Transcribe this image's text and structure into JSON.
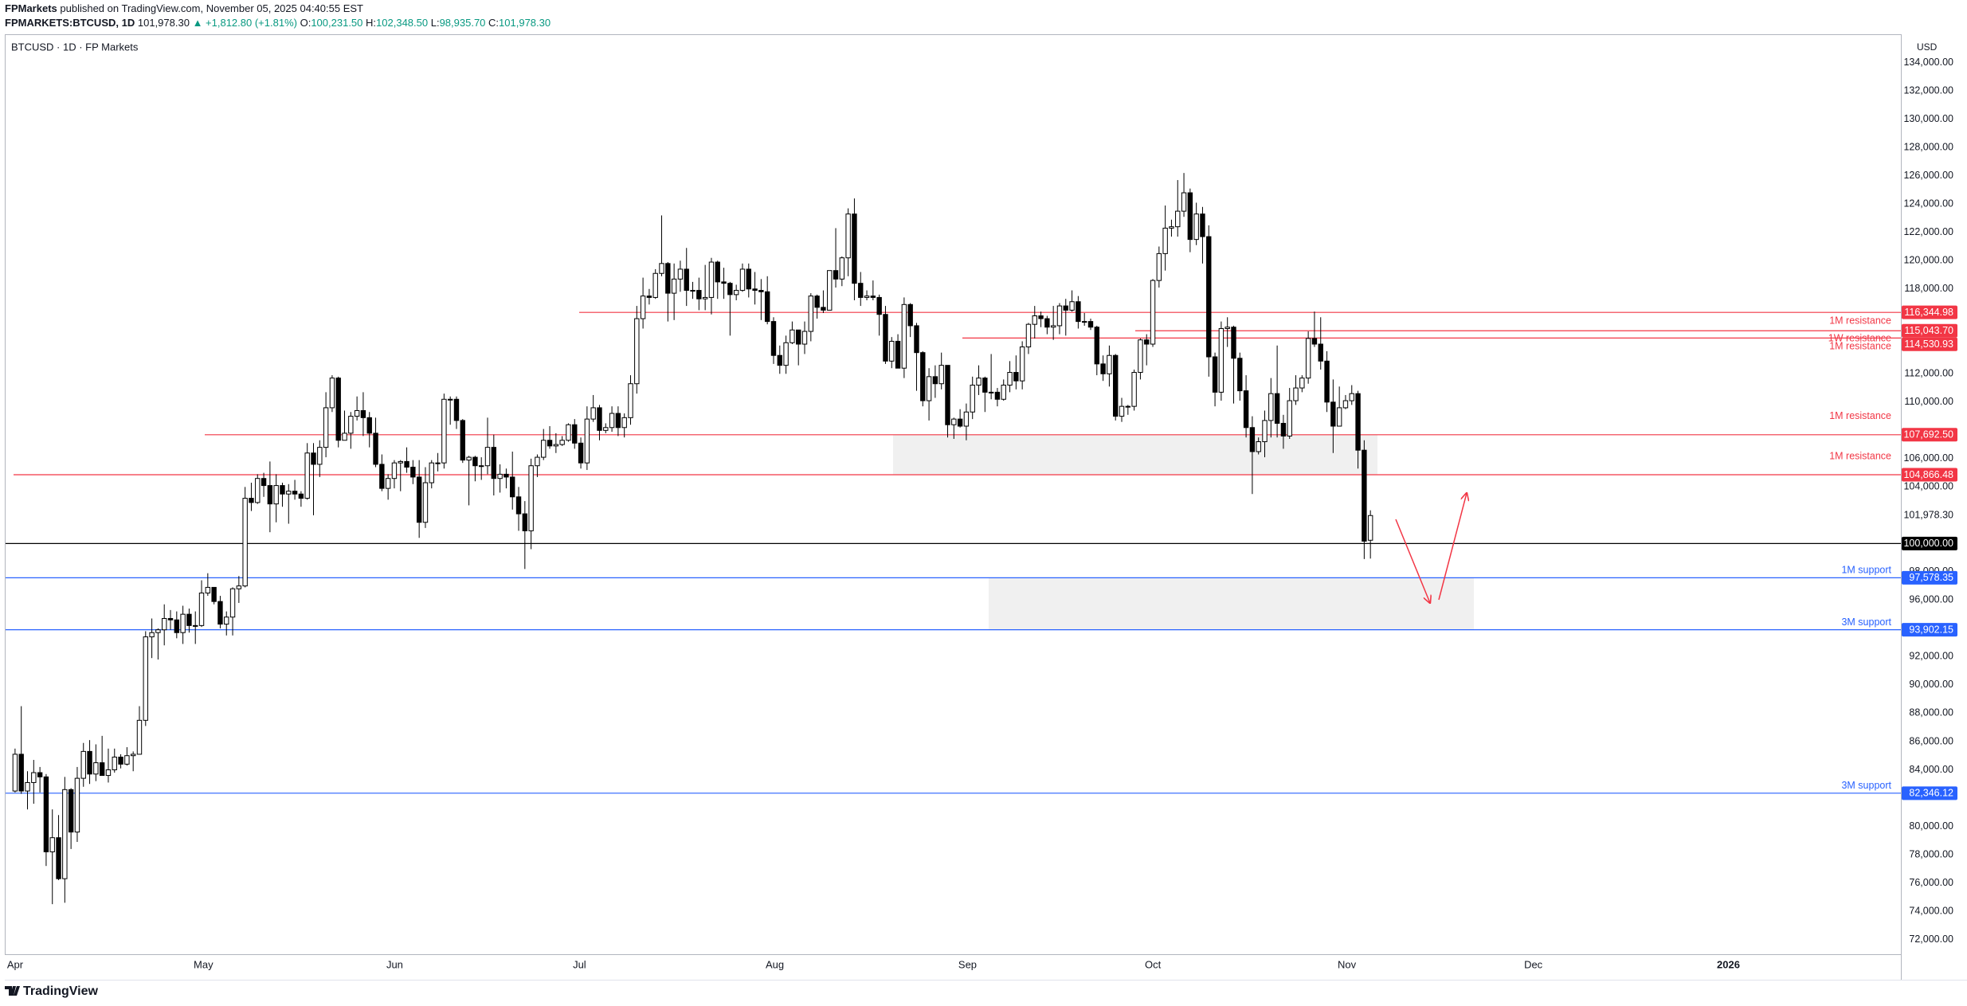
{
  "header": {
    "publisher": "FPMarkets",
    "published": "published on TradingView.com, November 05, 2025 04:40:55 EST",
    "symbol": "FPMARKETS:BTCUSD, 1D",
    "last": "101,978.30",
    "change": "▲ +1,812.80 (+1.81%)",
    "ohlc": [
      {
        "key": "O:",
        "value": "100,231.50"
      },
      {
        "key": "H:",
        "value": "102,348.50"
      },
      {
        "key": "L:",
        "value": "98,935.70"
      },
      {
        "key": "C:",
        "value": "101,978.30"
      }
    ]
  },
  "footer": {
    "brand": "TradingView"
  },
  "chart_data": {
    "type": "candlestick",
    "title": "BTCUSD · 1D · FP Markets",
    "currency": "USD",
    "up_color": "#ffffff",
    "down_color": "#000000",
    "grid": false,
    "xtick_labels": [
      "Apr",
      "May",
      "Jun",
      "Jul",
      "Aug",
      "Sep",
      "Oct",
      "Nov",
      "Dec",
      "2026"
    ],
    "ylim": [
      70960,
      136010
    ],
    "yticks": [
      {
        "value": 72000,
        "label": "72,000.00"
      },
      {
        "value": 74000,
        "label": "74,000.00"
      },
      {
        "value": 76000,
        "label": "76,000.00"
      },
      {
        "value": 78000,
        "label": "78,000.00"
      },
      {
        "value": 80000,
        "label": "80,000.00"
      },
      {
        "value": 84000,
        "label": "84,000.00"
      },
      {
        "value": 86000,
        "label": "86,000.00"
      },
      {
        "value": 88000,
        "label": "88,000.00"
      },
      {
        "value": 90000,
        "label": "90,000.00"
      },
      {
        "value": 92000,
        "label": "92,000.00"
      },
      {
        "value": 96000,
        "label": "96,000.00"
      },
      {
        "value": 98000,
        "label": "98,000.00"
      },
      {
        "value": 104000,
        "label": "104,000.00"
      },
      {
        "value": 106000,
        "label": "106,000.00"
      },
      {
        "value": 110000,
        "label": "110,000.00"
      },
      {
        "value": 112000,
        "label": "112,000.00"
      },
      {
        "value": 118000,
        "label": "118,000.00"
      },
      {
        "value": 120000,
        "label": "120,000.00"
      },
      {
        "value": 122000,
        "label": "122,000.00"
      },
      {
        "value": 124000,
        "label": "124,000.00"
      },
      {
        "value": 126000,
        "label": "126,000.00"
      },
      {
        "value": 128000,
        "label": "128,000.00"
      },
      {
        "value": 130000,
        "label": "130,000.00"
      },
      {
        "value": 132000,
        "label": "132,000.00"
      },
      {
        "value": 134000,
        "label": "134,000.00"
      }
    ],
    "last": {
      "value": 101978.3,
      "label": "101,978.30"
    },
    "levels": [
      {
        "price": 116344.98,
        "price_label": "116,344.98",
        "label": "1M resistance",
        "color": "#f23645"
      },
      {
        "price": 115043.7,
        "price_label": "115,043.70",
        "label": "1W resistance",
        "color": "#f23645"
      },
      {
        "price": 114530.93,
        "price_label": "114,530.93",
        "label": "1M resistance",
        "color": "#f23645"
      },
      {
        "price": 107692.5,
        "price_label": "107,692.50",
        "label": "1M resistance",
        "color": "#f23645"
      },
      {
        "price": 104866.48,
        "price_label": "104,866.48",
        "label": "1M resistance",
        "color": "#f23645"
      },
      {
        "price": 100000,
        "price_label": "100,000.00",
        "color": "#000000"
      },
      {
        "price": 97578.35,
        "price_label": "97,578.35",
        "label": "1M support",
        "color": "#2962ff"
      },
      {
        "price": 93902.15,
        "price_label": "93,902.15",
        "label": "3M support",
        "color": "#2962ff"
      },
      {
        "price": 82346.12,
        "price_label": "82,346.12",
        "label": "3M support",
        "color": "#2962ff"
      }
    ],
    "open": [
      82500,
      85100,
      82500,
      83100,
      83800,
      83500,
      78200,
      79200,
      76300,
      82600,
      79600,
      83400,
      85300,
      83700,
      84500,
      83600,
      84000,
      84900,
      84400,
      85000,
      85100,
      87500,
      93400,
      93700,
      93900,
      94700,
      94600,
      93700,
      95000,
      94200,
      94200,
      96500,
      96900,
      95900,
      94300,
      94800,
      96800,
      97000,
      103200,
      102900,
      104600,
      104100,
      102800,
      104100,
      103500,
      103700,
      103500,
      103200,
      106400,
      105600,
      106800,
      109600,
      111700,
      107300,
      107800,
      109000,
      109400,
      108900,
      107800,
      105600,
      103900,
      104600,
      105700,
      105800,
      105400,
      104700,
      101500,
      104300,
      105700,
      105700,
      110200,
      110200,
      108700,
      105900,
      106100,
      105500,
      105500,
      106800,
      104600,
      104900,
      104700,
      103300,
      102100,
      100900,
      105500,
      106100,
      107300,
      106900,
      107000,
      107300,
      108400,
      107100,
      105700,
      108800,
      109600,
      108000,
      108200,
      109200,
      108200,
      108900,
      111300,
      115900,
      117500,
      117400,
      119100,
      119800,
      117700,
      118700,
      119400,
      117900,
      117900,
      117300,
      117400,
      119900,
      118500,
      118400,
      117600,
      117900,
      119400,
      118000,
      117900,
      117800,
      115700,
      113300,
      112600,
      114200,
      115100,
      114100,
      115000,
      117500,
      116700,
      116500,
      119300,
      118700,
      120200,
      123300,
      118400,
      117400,
      117500,
      117400,
      116200,
      112900,
      114300,
      112400,
      116900,
      115400,
      113500,
      110100,
      111800,
      111300,
      112600,
      108400,
      108800,
      108300,
      109300,
      111200,
      111700,
      110700,
      110700,
      110200,
      111200,
      112100,
      111500,
      113900,
      115500,
      116100,
      115900,
      115300,
      115400,
      116800,
      116500,
      117100,
      115700,
      115700,
      115300,
      112700,
      112000,
      113300,
      109000,
      109700,
      109700,
      112100,
      114400,
      114100,
      118600,
      120500,
      122300,
      122400,
      123500,
      124800,
      121500,
      123300,
      121700,
      113200,
      110700,
      115200,
      115300,
      113100,
      110800,
      108200,
      106500,
      107200,
      108700,
      110600,
      108500,
      107600,
      110100,
      111000,
      111700,
      114500,
      114100,
      112900,
      110000,
      108300,
      109600,
      110100,
      110600,
      106600,
      100231.5
    ],
    "high": [
      85500,
      88500,
      83900,
      84700,
      84200,
      83700,
      81200,
      80800,
      83500,
      82700,
      84200,
      85900,
      86100,
      85800,
      86400,
      85500,
      85500,
      85100,
      85600,
      85300,
      88500,
      93800,
      94700,
      94000,
      95700,
      95300,
      95200,
      95600,
      95400,
      95200,
      97400,
      97900,
      96900,
      96300,
      95200,
      96900,
      97700,
      104000,
      104300,
      104900,
      105000,
      105800,
      104900,
      104300,
      104200,
      104500,
      103700,
      107100,
      107100,
      107300,
      110700,
      111900,
      111800,
      109400,
      109300,
      110400,
      110700,
      109300,
      108900,
      106300,
      104900,
      105900,
      105900,
      106800,
      105900,
      105900,
      105400,
      105900,
      106400,
      110600,
      110400,
      110400,
      108800,
      106200,
      106200,
      106100,
      108900,
      107700,
      105600,
      105300,
      106500,
      104000,
      103000,
      106000,
      106300,
      108100,
      108300,
      107800,
      107600,
      108500,
      108800,
      107500,
      109700,
      110500,
      109800,
      108500,
      109700,
      109700,
      109200,
      111900,
      116800,
      118800,
      118000,
      119400,
      123200,
      119900,
      119800,
      120000,
      120900,
      118500,
      118800,
      119700,
      120200,
      120000,
      119500,
      118500,
      118300,
      119800,
      119800,
      119200,
      118700,
      118900,
      116000,
      114000,
      114700,
      115700,
      115100,
      115700,
      117700,
      117600,
      117900,
      119300,
      122300,
      120300,
      123700,
      124400,
      119200,
      117900,
      118600,
      117600,
      116800,
      114600,
      114800,
      117400,
      117000,
      115600,
      113600,
      112400,
      112600,
      113500,
      112600,
      108900,
      109500,
      109900,
      111800,
      112600,
      111800,
      113400,
      111000,
      111600,
      112900,
      113300,
      114300,
      115600,
      116800,
      116400,
      116100,
      116800,
      117000,
      117300,
      117900,
      117500,
      116300,
      115900,
      115400,
      113300,
      114000,
      113400,
      110300,
      109800,
      112300,
      114500,
      114800,
      118700,
      121000,
      123900,
      122900,
      125700,
      126200,
      125100,
      124100,
      123800,
      122500,
      113500,
      115700,
      116000,
      115400,
      113500,
      111900,
      109000,
      107500,
      109400,
      111700,
      114000,
      109100,
      111000,
      111900,
      111900,
      115000,
      116400,
      116000,
      113600,
      111600,
      111100,
      110500,
      111200,
      110800,
      107300,
      102348.5
    ],
    "low": [
      82400,
      82300,
      81200,
      81600,
      82400,
      77200,
      74500,
      76200,
      74600,
      78400,
      78900,
      82800,
      83000,
      83200,
      83600,
      83100,
      83800,
      84100,
      84300,
      83900,
      85100,
      87100,
      91900,
      91800,
      92800,
      93900,
      93300,
      92900,
      93700,
      92900,
      94100,
      96300,
      95700,
      94000,
      93500,
      93500,
      95800,
      96900,
      102300,
      102800,
      103300,
      100800,
      101500,
      102600,
      101400,
      103100,
      102600,
      103100,
      102000,
      104700,
      106100,
      109300,
      106800,
      107300,
      106700,
      108700,
      107600,
      106800,
      105400,
      103700,
      103100,
      103900,
      103700,
      105000,
      104200,
      100400,
      101100,
      103900,
      105100,
      105300,
      108400,
      108100,
      105700,
      102700,
      104400,
      104500,
      104900,
      103400,
      103600,
      103900,
      102400,
      100900,
      98200,
      99600,
      104700,
      105900,
      106700,
      106400,
      106900,
      107200,
      106700,
      105300,
      105200,
      108600,
      107300,
      107800,
      107900,
      107600,
      107500,
      108400,
      110600,
      115200,
      116900,
      117300,
      118900,
      115700,
      115800,
      117800,
      116800,
      117300,
      116500,
      116500,
      116200,
      117300,
      117300,
      114700,
      117200,
      117800,
      117400,
      116900,
      115800,
      115500,
      112700,
      112000,
      112000,
      114100,
      112600,
      113400,
      114300,
      115900,
      116300,
      116500,
      118100,
      118200,
      118900,
      117200,
      116800,
      117200,
      117200,
      114700,
      112700,
      112400,
      112400,
      111700,
      114600,
      110800,
      109700,
      108700,
      110300,
      110900,
      107500,
      107400,
      108200,
      107300,
      108800,
      110500,
      109300,
      110200,
      109700,
      110100,
      110700,
      110900,
      110900,
      113400,
      114500,
      115300,
      114800,
      114400,
      114800,
      114700,
      116400,
      115200,
      115400,
      115100,
      111900,
      111500,
      111100,
      108700,
      108600,
      109100,
      109400,
      111600,
      112600,
      113900,
      118100,
      119300,
      121700,
      121700,
      123100,
      120600,
      121100,
      119800,
      111800,
      109700,
      110100,
      113900,
      109900,
      110100,
      107500,
      103500,
      106300,
      106100,
      107500,
      107500,
      106700,
      107400,
      109800,
      110700,
      111300,
      113900,
      112300,
      109300,
      106400,
      108300,
      109500,
      109800,
      105300,
      98900,
      98935.7
    ],
    "close": [
      85100,
      82500,
      83100,
      83800,
      83500,
      78200,
      79200,
      76300,
      82600,
      79600,
      83400,
      85300,
      83700,
      84500,
      83600,
      84000,
      84900,
      84400,
      85000,
      85100,
      87500,
      93400,
      93700,
      93900,
      94700,
      94600,
      93700,
      95000,
      94200,
      94200,
      96500,
      96900,
      95900,
      94300,
      94800,
      96800,
      97000,
      103200,
      102900,
      104600,
      104100,
      102800,
      104100,
      103500,
      103700,
      103500,
      103200,
      106400,
      105600,
      106800,
      109600,
      111700,
      107300,
      107800,
      109000,
      109400,
      108900,
      107800,
      105600,
      103900,
      104600,
      105700,
      105800,
      105400,
      104700,
      101500,
      104300,
      105700,
      105700,
      110200,
      110200,
      108700,
      105900,
      106100,
      105500,
      105500,
      106800,
      104600,
      104900,
      104700,
      103300,
      102100,
      100900,
      105500,
      106100,
      107300,
      106900,
      107000,
      107300,
      108400,
      107100,
      105700,
      108800,
      109600,
      108000,
      108200,
      109200,
      108200,
      108900,
      111300,
      115900,
      117500,
      117400,
      119100,
      119800,
      117700,
      118700,
      119400,
      117900,
      117900,
      117300,
      117400,
      119900,
      118500,
      118400,
      117600,
      117900,
      119400,
      118000,
      117900,
      117800,
      115700,
      113300,
      112600,
      114200,
      115100,
      114100,
      115000,
      117500,
      116700,
      116500,
      119300,
      118700,
      120200,
      123300,
      118400,
      117400,
      117500,
      117400,
      116200,
      112900,
      114300,
      112400,
      116900,
      115400,
      113500,
      110100,
      111800,
      111300,
      112600,
      108400,
      108800,
      108300,
      109300,
      111200,
      111700,
      110700,
      110700,
      110200,
      111200,
      112100,
      111500,
      113900,
      115500,
      116100,
      115900,
      115300,
      115400,
      116800,
      116500,
      117100,
      115700,
      115700,
      115300,
      112700,
      112000,
      113300,
      109000,
      109700,
      109700,
      112100,
      114400,
      114100,
      118600,
      120500,
      122300,
      122400,
      123500,
      124800,
      121500,
      123300,
      121700,
      113200,
      110700,
      115200,
      115300,
      113100,
      110800,
      108200,
      106500,
      107200,
      108700,
      110600,
      108500,
      107600,
      110100,
      111000,
      111700,
      114500,
      114100,
      112900,
      110000,
      108300,
      109600,
      110100,
      110600,
      106600,
      100165.5,
      101978.3
    ]
  }
}
